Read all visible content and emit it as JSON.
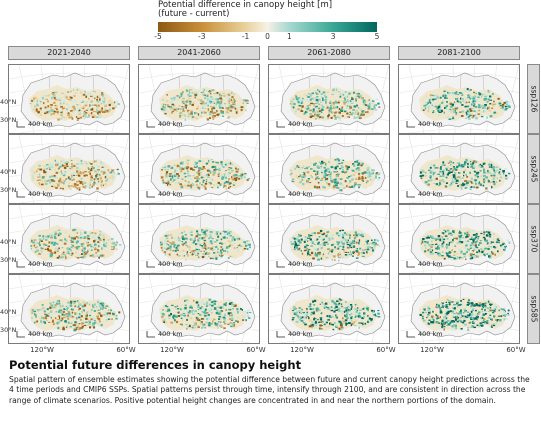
{
  "legend": {
    "title_line1": "Potential difference in canopy height [m]",
    "title_line2": "(future - current)",
    "ticks": [
      "-5",
      "-3",
      "-1",
      "0",
      "1",
      "3",
      "5"
    ],
    "colors": [
      "#8c5a14",
      "#c98f3a",
      "#e8d29c",
      "#f5f1e6",
      "#a6d8cf",
      "#39a795",
      "#01665e"
    ]
  },
  "columns": [
    "2021-2040",
    "2041-2060",
    "2061-2080",
    "2081-2100"
  ],
  "rows": [
    "ssp126",
    "ssp245",
    "ssp370",
    "ssp585"
  ],
  "axes": {
    "lat_labels": [
      "40°N",
      "30°N"
    ],
    "lon_labels": [
      "120°W",
      "60°W"
    ],
    "scale_bar": "400 km"
  },
  "caption": {
    "title": "Potential future differences in canopy height",
    "text": "Spatial pattern of ensemble estimates showing the potential difference between future and current canopy height predictions across the 4 time periods and CMIP6 SSPs. Spatial patterns persist through time, intensify through 2100, and are consistent in direction across the range of climate scenarios. Positive potential height changes are concentrated in and near the northern portions of the domain."
  }
}
